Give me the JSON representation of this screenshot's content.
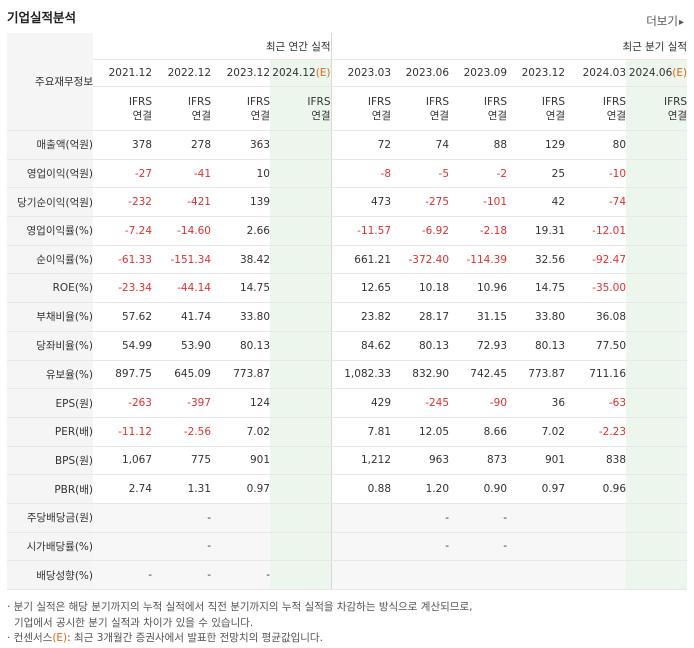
{
  "section_title": "기업실적분석",
  "more_label": "더보기",
  "more_arrow": "▸",
  "header": {
    "corner_label": "주요재무정보",
    "annual_group": "최근 연간 실적",
    "quarter_group": "최근 분기 실적",
    "annual_periods": [
      "2021.12",
      "2022.12",
      "2023.12"
    ],
    "annual_est_period": "2024.12",
    "quarter_periods": [
      "2023.03",
      "2023.06",
      "2023.09",
      "2023.12",
      "2024.03"
    ],
    "quarter_est_period": "2024.06",
    "est_marker": "(E)",
    "basis_line1": "IFRS",
    "basis_line2": "연결"
  },
  "rows": [
    {
      "label": "매출액(억원)",
      "annual": [
        "378",
        "278",
        "363",
        ""
      ],
      "quarter": [
        "72",
        "74",
        "88",
        "129",
        "80",
        ""
      ]
    },
    {
      "label": "영업이익(억원)",
      "annual": [
        "-27",
        "-41",
        "10",
        ""
      ],
      "quarter": [
        "-8",
        "-5",
        "-2",
        "25",
        "-10",
        ""
      ]
    },
    {
      "label": "당기순이익(억원)",
      "annual": [
        "-232",
        "-421",
        "139",
        ""
      ],
      "quarter": [
        "473",
        "-275",
        "-101",
        "42",
        "-74",
        ""
      ]
    },
    {
      "label": "영업이익률(%)",
      "annual": [
        "-7.24",
        "-14.60",
        "2.66",
        ""
      ],
      "quarter": [
        "-11.57",
        "-6.92",
        "-2.18",
        "19.31",
        "-12.01",
        ""
      ]
    },
    {
      "label": "순이익률(%)",
      "annual": [
        "-61.33",
        "-151.34",
        "38.42",
        ""
      ],
      "quarter": [
        "661.21",
        "-372.40",
        "-114.39",
        "32.56",
        "-92.47",
        ""
      ]
    },
    {
      "label": "ROE(%)",
      "annual": [
        "-23.34",
        "-44.14",
        "14.75",
        ""
      ],
      "quarter": [
        "12.65",
        "10.18",
        "10.96",
        "14.75",
        "-35.00",
        ""
      ]
    },
    {
      "label": "부채비율(%)",
      "annual": [
        "57.62",
        "41.74",
        "33.80",
        ""
      ],
      "quarter": [
        "23.82",
        "28.17",
        "31.15",
        "33.80",
        "36.08",
        ""
      ]
    },
    {
      "label": "당좌비율(%)",
      "annual": [
        "54.99",
        "53.90",
        "80.13",
        ""
      ],
      "quarter": [
        "84.62",
        "80.13",
        "72.93",
        "80.13",
        "77.50",
        ""
      ]
    },
    {
      "label": "유보율(%)",
      "annual": [
        "897.75",
        "645.09",
        "773.87",
        ""
      ],
      "quarter": [
        "1,082.33",
        "832.90",
        "742.45",
        "773.87",
        "711.16",
        ""
      ]
    },
    {
      "label": "EPS(원)",
      "annual": [
        "-263",
        "-397",
        "124",
        ""
      ],
      "quarter": [
        "429",
        "-245",
        "-90",
        "36",
        "-63",
        ""
      ]
    },
    {
      "label": "PER(배)",
      "annual": [
        "-11.12",
        "-2.56",
        "7.02",
        ""
      ],
      "quarter": [
        "7.81",
        "12.05",
        "8.66",
        "7.02",
        "-2.23",
        ""
      ]
    },
    {
      "label": "BPS(원)",
      "annual": [
        "1,067",
        "775",
        "901",
        ""
      ],
      "quarter": [
        "1,212",
        "963",
        "873",
        "901",
        "838",
        ""
      ]
    },
    {
      "label": "PBR(배)",
      "annual": [
        "2.74",
        "1.31",
        "0.97",
        ""
      ],
      "quarter": [
        "0.88",
        "1.20",
        "0.90",
        "0.97",
        "0.96",
        ""
      ]
    },
    {
      "label": "주당배당금(원)",
      "annual": [
        "",
        "-",
        "",
        ""
      ],
      "quarter": [
        "",
        "-",
        "-",
        "",
        "",
        ""
      ]
    },
    {
      "label": "시가배당률(%)",
      "annual": [
        "",
        "-",
        "",
        ""
      ],
      "quarter": [
        "",
        "-",
        "-",
        "",
        "",
        ""
      ]
    },
    {
      "label": "배당성향(%)",
      "annual": [
        "-",
        "-",
        "-",
        ""
      ],
      "quarter": [
        "",
        "",
        "",
        "",
        "",
        ""
      ]
    }
  ],
  "notes": {
    "line1": "· 분기 실적은 해당 분기까지의 누적 실적에서 직전 분기까지의 누적 실적을 차감하는 방식으로 계산되므로,",
    "line2": "기업에서 공시한 분기 실적과 차이가 있을 수 있습니다.",
    "line3_prefix": "· 컨센서스",
    "line3_marker": "(E)",
    "line3_suffix": ": 최근 3개월간 증권사에서 발표한 전망치의 평균값입니다."
  },
  "colors": {
    "negative": "#e03030",
    "accent": "#e0681a",
    "estimate_bg": "#edf6ec",
    "label_bg": "#f5f5f5"
  }
}
